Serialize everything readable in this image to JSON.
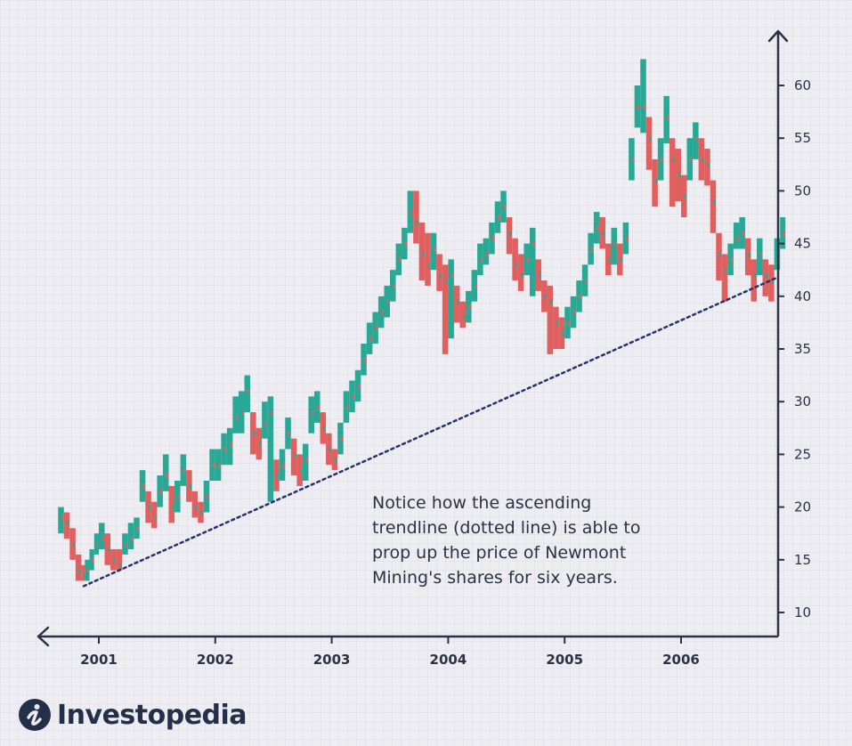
{
  "colors": {
    "up": "#2aa896",
    "down": "#e06060",
    "axis": "#2b3245",
    "trendline": "#26336e",
    "grid": "#d3d3dd",
    "background": "#eeeef2"
  },
  "annotation": "Notice how the ascending\ntrendline (dotted line) is able to\nprop up the price of Newmont\nMining's shares for six years.",
  "brand": {
    "name": "Investopedia",
    "icon": "investopedia-logo-icon"
  },
  "chart_data": {
    "type": "line",
    "subtype": "weekly price bars (high-low)",
    "title": "",
    "xlabel": "",
    "ylabel": "",
    "x_ticks": [
      "2001",
      "2002",
      "2003",
      "2004",
      "2005",
      "2006"
    ],
    "y_ticks": [
      10,
      15,
      20,
      25,
      30,
      35,
      40,
      45,
      50,
      55,
      60
    ],
    "xlim": [
      2000.6,
      2006.9
    ],
    "ylim": [
      7.5,
      65
    ],
    "y_axis_position": "right",
    "grid": true,
    "legend": "none",
    "trendline": {
      "style": "dotted",
      "points": [
        {
          "x": 2000.87,
          "y": 12.5
        },
        {
          "x": 2006.83,
          "y": 41.8
        }
      ]
    },
    "series": [
      {
        "x": [
          2000.65,
          2000.7,
          2000.75,
          2000.8,
          2000.85,
          2000.88,
          2000.92,
          2000.96,
          2001.0,
          2001.05,
          2001.1,
          2001.15,
          2001.2,
          2001.25,
          2001.3,
          2001.35,
          2001.4,
          2001.45,
          2001.5,
          2001.55,
          2001.6,
          2001.65,
          2001.7,
          2001.75,
          2001.8,
          2001.85,
          2001.9,
          2001.95,
          2002.0,
          2002.05,
          2002.1,
          2002.15,
          2002.2,
          2002.25,
          2002.3,
          2002.35,
          2002.4,
          2002.45,
          2002.5,
          2002.55,
          2002.6,
          2002.65,
          2002.7,
          2002.75,
          2002.8,
          2002.85,
          2002.9,
          2002.95,
          2003.0,
          2003.05,
          2003.1,
          2003.15,
          2003.2,
          2003.25,
          2003.3,
          2003.35,
          2003.4,
          2003.45,
          2003.5,
          2003.55,
          2003.6,
          2003.65,
          2003.7,
          2003.75,
          2003.8,
          2003.85,
          2003.9,
          2003.95,
          2004.0,
          2004.05,
          2004.1,
          2004.15,
          2004.2,
          2004.25,
          2004.3,
          2004.35,
          2004.4,
          2004.45,
          2004.5,
          2004.55,
          2004.6,
          2004.65,
          2004.7,
          2004.75,
          2004.8,
          2004.85,
          2004.9,
          2004.95,
          2005.0,
          2005.05,
          2005.1,
          2005.15,
          2005.2,
          2005.25,
          2005.3,
          2005.35,
          2005.4,
          2005.45,
          2005.5,
          2005.55,
          2005.6,
          2005.65,
          2005.7,
          2005.75,
          2005.8,
          2005.85,
          2005.9,
          2005.95,
          2006.0,
          2006.05,
          2006.1,
          2006.15,
          2006.2,
          2006.25,
          2006.3,
          2006.35,
          2006.4,
          2006.45,
          2006.5,
          2006.55,
          2006.6,
          2006.65,
          2006.7,
          2006.75,
          2006.8,
          2006.85
        ],
        "values": [
          19,
          18.5,
          16.5,
          14,
          13.5,
          14,
          15,
          16.5,
          17,
          16,
          15,
          14.5,
          16.5,
          17,
          18,
          22,
          20,
          19,
          21.5,
          23,
          20,
          21,
          23.5,
          22,
          20,
          19.5,
          21,
          24,
          24,
          25.5,
          26,
          28.5,
          29,
          31,
          27,
          26,
          28,
          29,
          23,
          24,
          27,
          25,
          23.5,
          24.5,
          29,
          29.5,
          27.5,
          25.5,
          24.5,
          26.5,
          29.5,
          30.5,
          31.5,
          34,
          36,
          37,
          38.5,
          39.5,
          41,
          43.5,
          45,
          48,
          47,
          44,
          43,
          44.5,
          42,
          41.5,
          42,
          39.5,
          38,
          39,
          41,
          43.5,
          44,
          45.5,
          47.5,
          48.5,
          46,
          43,
          42,
          43.5,
          45,
          42,
          40,
          39.5,
          37.5,
          36.5,
          37.5,
          38.5,
          40,
          41.5,
          44.5,
          46.5,
          46,
          43.5,
          45,
          43.5,
          45.5,
          53,
          58,
          58,
          55,
          51,
          53,
          57,
          53,
          51.5,
          49.5,
          53,
          55,
          53,
          52.5,
          49,
          44,
          42.5,
          43.5,
          45.5,
          46,
          44,
          42,
          44,
          42,
          41.5,
          44,
          46
        ],
        "lows": [
          17.5,
          17,
          15,
          13,
          13,
          13,
          14,
          15.5,
          16,
          14.5,
          14,
          14,
          15.5,
          16,
          17,
          20.5,
          18.5,
          18,
          20,
          21.5,
          18.5,
          19.5,
          22,
          20.5,
          19,
          18.5,
          19.5,
          22.5,
          22.5,
          24,
          24,
          27,
          27,
          29,
          25,
          24.5,
          26.5,
          20.5,
          21.5,
          22.5,
          25.5,
          23,
          22,
          22.5,
          27,
          28,
          26,
          24,
          23.5,
          25,
          28,
          29,
          30,
          32.5,
          34.5,
          35.5,
          37,
          38,
          39.5,
          42,
          43.5,
          46,
          45,
          41.5,
          41,
          42.5,
          40.5,
          34.5,
          36,
          37.5,
          37,
          37.5,
          39.5,
          42,
          43,
          44,
          46,
          47,
          44,
          41.5,
          40.5,
          42,
          40,
          40.5,
          38.5,
          34.5,
          35,
          35,
          36,
          37,
          38.5,
          40,
          43,
          45,
          44.5,
          42,
          43,
          42,
          44,
          51,
          56,
          55.5,
          52,
          48.5,
          51,
          54.5,
          48.5,
          49,
          47.5,
          51,
          53,
          51,
          50.5,
          46,
          41.5,
          39.5,
          42,
          44.5,
          44.5,
          42,
          39.5,
          42,
          40,
          39.5,
          42.5,
          44.5
        ],
        "highs": [
          20,
          19.5,
          18,
          15.5,
          14.5,
          15,
          16,
          17.5,
          18.5,
          17.5,
          16,
          16,
          17.5,
          18.5,
          19,
          23.5,
          21.5,
          20.5,
          23,
          25,
          22,
          22.5,
          25,
          23.5,
          21.5,
          20.5,
          22.5,
          25.5,
          25.5,
          27,
          27.5,
          30.5,
          31,
          32.5,
          29,
          27.5,
          30,
          30.5,
          24.5,
          25.5,
          28.5,
          26.5,
          25,
          26,
          30.5,
          31,
          29,
          27,
          25.5,
          28,
          31,
          32,
          33,
          35.5,
          37.5,
          38.5,
          40,
          41,
          42.5,
          45,
          46.5,
          50,
          50,
          47,
          46,
          46,
          44,
          43,
          43.5,
          41,
          39.5,
          40.5,
          42.5,
          45,
          45.5,
          47,
          49,
          50,
          47.5,
          45.5,
          44,
          45,
          46.5,
          43.5,
          41.5,
          41,
          39,
          38,
          39,
          40,
          41.5,
          43,
          46,
          48,
          47.5,
          45,
          46.5,
          45,
          47,
          55,
          60,
          62.5,
          57,
          53,
          55,
          59,
          55,
          54,
          51.5,
          55,
          56.5,
          55,
          54,
          51,
          46,
          44,
          45,
          47,
          47.5,
          45.5,
          43.5,
          45.5,
          43.5,
          43,
          45.5,
          47.5
        ]
      }
    ]
  }
}
